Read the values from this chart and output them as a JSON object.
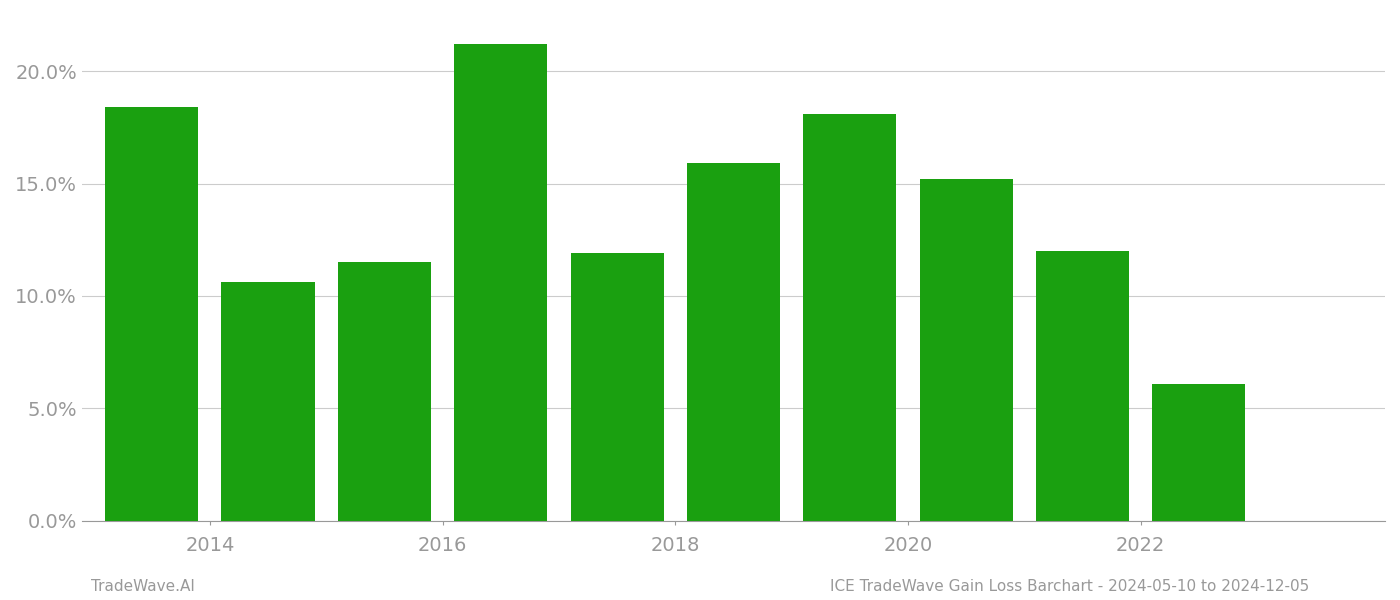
{
  "years": [
    2013,
    2014,
    2015,
    2016,
    2017,
    2018,
    2019,
    2020,
    2021,
    2022
  ],
  "values": [
    0.184,
    0.106,
    0.115,
    0.212,
    0.119,
    0.159,
    0.181,
    0.152,
    0.12,
    0.061
  ],
  "bar_color": "#1aa010",
  "background_color": "#ffffff",
  "ytick_values": [
    0.0,
    0.05,
    0.1,
    0.15,
    0.2
  ],
  "xtick_labels": [
    "2014",
    "2016",
    "2018",
    "2020",
    "2022"
  ],
  "xtick_positions": [
    2013.5,
    2015.5,
    2017.5,
    2019.5,
    2021.5
  ],
  "footer_left": "TradeWave.AI",
  "footer_right": "ICE TradeWave Gain Loss Barchart - 2024-05-10 to 2024-12-05",
  "ylim": [
    0,
    0.225
  ],
  "xlim": [
    2012.4,
    2023.6
  ],
  "grid_color": "#cccccc",
  "tick_color": "#999999",
  "footer_color": "#999999",
  "bar_width": 0.8,
  "tick_fontsize": 14,
  "footer_fontsize": 11
}
